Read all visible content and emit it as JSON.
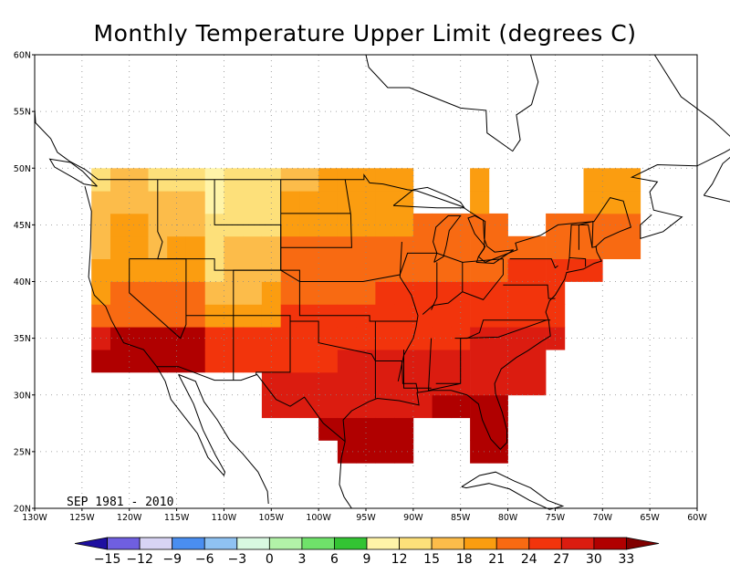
{
  "title": "Monthly Temperature Upper Limit (degrees C)",
  "period_label": "SEP  1981 - 2010",
  "map": {
    "lon_range": [
      -130,
      -60
    ],
    "lat_range": [
      20,
      60
    ],
    "lon_ticks": [
      "130W",
      "125W",
      "120W",
      "115W",
      "110W",
      "105W",
      "100W",
      "95W",
      "90W",
      "85W",
      "80W",
      "75W",
      "70W",
      "65W",
      "60W"
    ],
    "lat_ticks": [
      "20N",
      "25N",
      "30N",
      "35N",
      "40N",
      "45N",
      "50N",
      "55N",
      "60N"
    ],
    "grid": true
  },
  "colorbar": {
    "labels": [
      "-15",
      "-12",
      "-9",
      "-6",
      "-3",
      "0",
      "3",
      "6",
      "9",
      "12",
      "15",
      "18",
      "21",
      "24",
      "27",
      "30",
      "33"
    ],
    "colors": [
      "#1e0fa0",
      "#6f5fe0",
      "#d8d4f4",
      "#4a8ef0",
      "#8fc2f2",
      "#d8f8e0",
      "#b2f2a8",
      "#6fe26a",
      "#33c433",
      "#fff4a8",
      "#fde07a",
      "#fcbc4a",
      "#fb9d10",
      "#f86a12",
      "#f2340c",
      "#db1c10",
      "#b00000",
      "#800000"
    ]
  }
}
